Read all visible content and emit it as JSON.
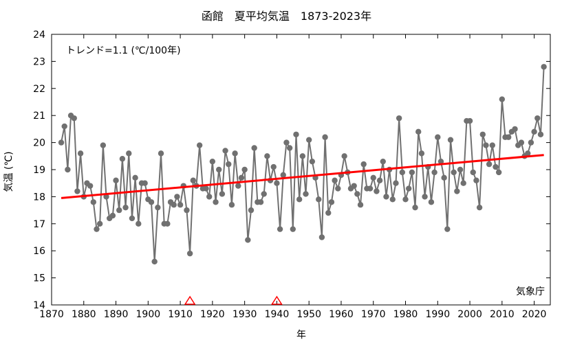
{
  "chart_data": {
    "type": "line",
    "title": "函館　夏平均気温　1873-2023年",
    "xlabel": "年",
    "ylabel": "気温 (℃)",
    "xlim": [
      1870,
      2025
    ],
    "ylim": [
      14,
      24
    ],
    "xticks": [
      1870,
      1880,
      1890,
      1900,
      1910,
      1920,
      1930,
      1940,
      1950,
      1960,
      1970,
      1980,
      1990,
      2000,
      2010,
      2020
    ],
    "yticks": [
      14,
      15,
      16,
      17,
      18,
      19,
      20,
      21,
      22,
      23,
      24
    ],
    "annotation_trend": "トレンド=1.1 (℃/100年)",
    "source": "気象庁",
    "series": [
      {
        "color": "#707070",
        "x": [
          1873,
          1874,
          1875,
          1876,
          1877,
          1878,
          1879,
          1880,
          1881,
          1882,
          1883,
          1884,
          1885,
          1886,
          1887,
          1888,
          1889,
          1890,
          1891,
          1892,
          1893,
          1894,
          1895,
          1896,
          1897,
          1898,
          1899,
          1900,
          1901,
          1902,
          1903,
          1904,
          1905,
          1906,
          1907,
          1908,
          1909,
          1910,
          1911,
          1912,
          1913,
          1914,
          1915,
          1916,
          1917,
          1918,
          1919,
          1920,
          1921,
          1922,
          1923,
          1924,
          1925,
          1926,
          1927,
          1928,
          1929,
          1930,
          1931,
          1932,
          1933,
          1934,
          1935,
          1936,
          1937,
          1938,
          1939,
          1940,
          1941,
          1942,
          1943,
          1944,
          1945,
          1946,
          1947,
          1948,
          1949,
          1950,
          1951,
          1952,
          1953,
          1954,
          1955,
          1956,
          1957,
          1958,
          1959,
          1960,
          1961,
          1962,
          1963,
          1964,
          1965,
          1966,
          1967,
          1968,
          1969,
          1970,
          1971,
          1972,
          1973,
          1974,
          1975,
          1976,
          1977,
          1978,
          1979,
          1980,
          1981,
          1982,
          1983,
          1984,
          1985,
          1986,
          1987,
          1988,
          1989,
          1990,
          1991,
          1992,
          1993,
          1994,
          1995,
          1996,
          1997,
          1998,
          1999,
          2000,
          2001,
          2002,
          2003,
          2004,
          2005,
          2006,
          2007,
          2008,
          2009,
          2010,
          2011,
          2012,
          2013,
          2014,
          2015,
          2016,
          2017,
          2018,
          2019,
          2020,
          2021,
          2022,
          2023
        ],
        "y": [
          20.0,
          20.6,
          19.0,
          21.0,
          20.9,
          18.2,
          19.6,
          18.0,
          18.5,
          18.4,
          17.8,
          16.8,
          17.0,
          19.9,
          18.0,
          17.2,
          17.3,
          18.6,
          17.5,
          19.4,
          17.6,
          19.6,
          17.2,
          18.7,
          17.0,
          18.5,
          18.5,
          17.9,
          17.8,
          15.6,
          17.6,
          19.6,
          17.0,
          17.0,
          17.8,
          17.7,
          18.0,
          17.7,
          18.4,
          17.5,
          15.9,
          18.6,
          18.4,
          19.9,
          18.3,
          18.3,
          18.0,
          19.3,
          17.8,
          19.0,
          18.1,
          19.7,
          19.2,
          17.7,
          19.6,
          18.4,
          18.7,
          19.0,
          16.4,
          17.5,
          19.8,
          17.8,
          17.8,
          18.1,
          19.5,
          18.6,
          19.1,
          18.5,
          16.8,
          18.8,
          20.0,
          19.8,
          16.8,
          20.3,
          17.9,
          19.5,
          18.1,
          20.1,
          19.3,
          18.7,
          17.9,
          16.5,
          20.2,
          17.4,
          17.8,
          18.6,
          18.3,
          18.8,
          19.5,
          18.9,
          18.3,
          18.4,
          18.1,
          17.7,
          19.2,
          18.3,
          18.3,
          18.7,
          18.2,
          18.6,
          19.3,
          18.0,
          19.0,
          17.9,
          18.5,
          20.9,
          18.9,
          17.9,
          18.3,
          18.9,
          17.6,
          20.4,
          19.6,
          18.0,
          19.1,
          17.8,
          18.9,
          20.2,
          19.3,
          18.7,
          16.8,
          20.1,
          18.9,
          18.2,
          19.0,
          18.5,
          20.8,
          20.8,
          18.9,
          18.6,
          17.6,
          20.3,
          19.9,
          19.2,
          19.9,
          19.1,
          18.9,
          21.6,
          20.2,
          20.2,
          20.4,
          20.5,
          19.9,
          20.0,
          19.5,
          19.6,
          20.0,
          20.4,
          20.9,
          20.3,
          22.8
        ]
      },
      {
        "color": "#ff0000",
        "x": [
          1873,
          2023
        ],
        "y": [
          17.95,
          19.54
        ]
      }
    ],
    "station_change_markers": {
      "color": "#ff0000",
      "x": [
        1913,
        1940
      ]
    }
  }
}
